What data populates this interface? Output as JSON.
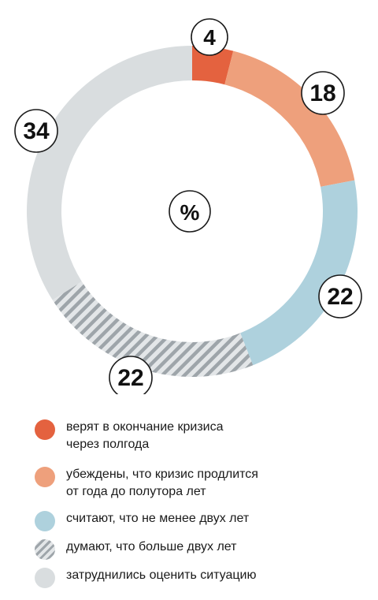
{
  "chart_data": {
    "type": "pie",
    "center_label": "%",
    "slices": [
      {
        "label": "4",
        "value": 4,
        "color": "#e4623f"
      },
      {
        "label": "18",
        "value": 18,
        "color": "#eea07c"
      },
      {
        "label": "22",
        "value": 22,
        "color": "#aed1dd"
      },
      {
        "label": "22",
        "value": 22,
        "color": "#c1c6c9",
        "pattern": "hatched"
      },
      {
        "label": "34",
        "value": 34,
        "color": "#d9dddf"
      }
    ],
    "legend": [
      {
        "line1": "верят в окончание кризиса",
        "line2": "через полгода",
        "color": "#e4623f"
      },
      {
        "line1": "убеждены, что кризис продлится",
        "line2": "от года до полутора лет",
        "color": "#eea07c"
      },
      {
        "line1": "считают, что не менее двух лет",
        "line2": "",
        "color": "#aed1dd"
      },
      {
        "line1": "думают, что больше двух лет",
        "line2": "",
        "color": "#c1c6c9",
        "pattern": "hatched"
      },
      {
        "line1": "затруднились оценить ситуацию",
        "line2": "",
        "color": "#d9dddf"
      }
    ]
  }
}
